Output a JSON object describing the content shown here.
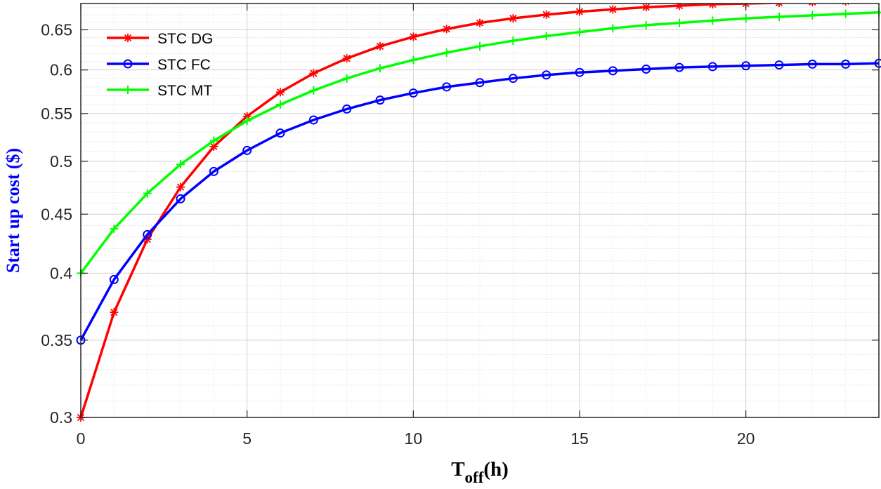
{
  "chart_data": {
    "type": "line",
    "title": "",
    "xlabel_main": "T",
    "xlabel_sub": "off",
    "xlabel_unit": "(h)",
    "ylabel": "Start up cost ($)",
    "xlim": [
      0,
      24
    ],
    "ylim": [
      0.3,
      0.685
    ],
    "yscale": "log",
    "grid": true,
    "minor_grid": true,
    "legend_position": "top-left",
    "x_ticks": [
      0,
      5,
      10,
      15,
      20
    ],
    "x_tick_labels": [
      "0",
      "5",
      "10",
      "15",
      "20"
    ],
    "y_ticks": [
      0.3,
      0.35,
      0.4,
      0.45,
      0.5,
      0.55,
      0.6,
      0.65
    ],
    "y_tick_labels": [
      "0.3",
      "0.35",
      "0.4",
      "0.45",
      "0.5",
      "0.55",
      "0.6",
      "0.65"
    ],
    "x": [
      0,
      1,
      2,
      3,
      4,
      5,
      6,
      7,
      8,
      9,
      10,
      11,
      12,
      13,
      14,
      15,
      16,
      17,
      18,
      19,
      20,
      21,
      22,
      23,
      24
    ],
    "series": [
      {
        "name": "STC DG",
        "color": "#ff0000",
        "marker": "asterisk",
        "values": [
          0.3,
          0.37,
          0.428,
          0.475,
          0.515,
          0.547,
          0.574,
          0.596,
          0.614,
          0.629,
          0.641,
          0.651,
          0.659,
          0.665,
          0.67,
          0.674,
          0.677,
          0.68,
          0.682,
          0.684,
          0.685,
          0.686,
          0.687,
          0.688,
          0.689
        ]
      },
      {
        "name": "STC FC",
        "color": "#0000ff",
        "marker": "circle",
        "values": [
          0.35,
          0.395,
          0.432,
          0.464,
          0.49,
          0.511,
          0.529,
          0.543,
          0.555,
          0.565,
          0.573,
          0.58,
          0.585,
          0.59,
          0.594,
          0.597,
          0.599,
          0.601,
          0.603,
          0.604,
          0.605,
          0.606,
          0.607,
          0.607,
          0.608
        ]
      },
      {
        "name": "STC MT",
        "color": "#00ff00",
        "marker": "plus",
        "values": [
          0.4,
          0.437,
          0.469,
          0.497,
          0.521,
          0.542,
          0.56,
          0.576,
          0.59,
          0.602,
          0.612,
          0.621,
          0.629,
          0.636,
          0.642,
          0.647,
          0.652,
          0.656,
          0.659,
          0.662,
          0.665,
          0.667,
          0.669,
          0.671,
          0.673
        ]
      }
    ]
  }
}
